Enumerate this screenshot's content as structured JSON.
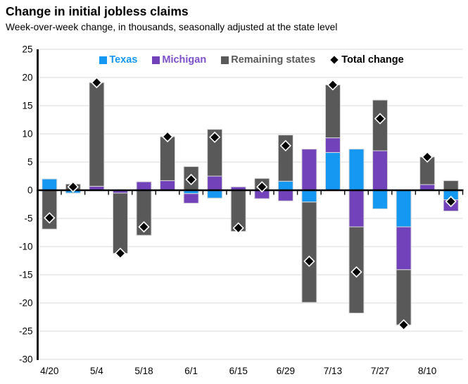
{
  "header": {
    "title": "Change in initial jobless claims",
    "subtitle": "Week-over-week change, in thousands, seasonally adjusted at the state level"
  },
  "colors": {
    "texas": "#1598F2",
    "michigan": "#7142B9",
    "michigan_text": "#7C4FC9",
    "remaining": "#595959",
    "total_marker": "#000000",
    "marker_outline": "#FFFFFF",
    "gridline": "#D9D9D9",
    "bar_border": "#D9D9D9",
    "axis": "#000000",
    "text": "#000000",
    "background": "#FFFFFF"
  },
  "legend": {
    "items": [
      {
        "key": "texas",
        "label": "Texas",
        "marker": "square"
      },
      {
        "key": "michigan",
        "label": "Michigan",
        "marker": "square"
      },
      {
        "key": "remaining",
        "label": "Remaining states",
        "marker": "square"
      },
      {
        "key": "total",
        "label": "Total change",
        "marker": "diamond"
      }
    ]
  },
  "chart_data": {
    "type": "bar",
    "stacked": true,
    "n_bars": 18,
    "x_tick_labels": [
      "4/20",
      "5/4",
      "5/18",
      "6/1",
      "6/15",
      "6/29",
      "7/13",
      "7/27",
      "8/10"
    ],
    "x_tick_every": 2,
    "y_tick_labels": [
      "25",
      "20",
      "15",
      "10",
      "5",
      "0",
      "-5",
      "-10",
      "-15",
      "-20",
      "-25",
      "-30"
    ],
    "ylim": [
      -30,
      25
    ],
    "ytick_step": 5,
    "grid": true,
    "legend_position": "top-center",
    "series": [
      {
        "name": "Texas",
        "color_key": "texas",
        "values": [
          2.0,
          -0.5,
          0,
          0,
          0,
          0,
          -0.6,
          -1.4,
          0,
          0,
          1.6,
          -2.1,
          6.7,
          7.3,
          -3.3,
          -6.5,
          0,
          -1.7
        ]
      },
      {
        "name": "Michigan",
        "color_key": "michigan",
        "values": [
          0,
          0,
          0.7,
          -0.5,
          1.5,
          1.7,
          -1.7,
          2.5,
          0.6,
          -1.5,
          -1.9,
          7.3,
          2.6,
          -6.5,
          7.0,
          -7.6,
          1.0,
          -2.0
        ]
      },
      {
        "name": "Remaining states",
        "color_key": "remaining",
        "values": [
          -6.9,
          1.1,
          18.4,
          -10.7,
          -8.0,
          7.8,
          4.2,
          8.3,
          -7.3,
          2.1,
          8.2,
          -17.8,
          9.4,
          -15.3,
          9.0,
          -9.8,
          4.9,
          1.7
        ]
      }
    ],
    "markers": {
      "name": "Total change",
      "values": [
        -4.9,
        0.6,
        19.1,
        -11.2,
        -6.5,
        9.5,
        1.9,
        9.4,
        -6.7,
        0.6,
        7.9,
        -12.6,
        18.7,
        -14.5,
        12.7,
        -23.9,
        5.9,
        -2.0
      ]
    }
  }
}
